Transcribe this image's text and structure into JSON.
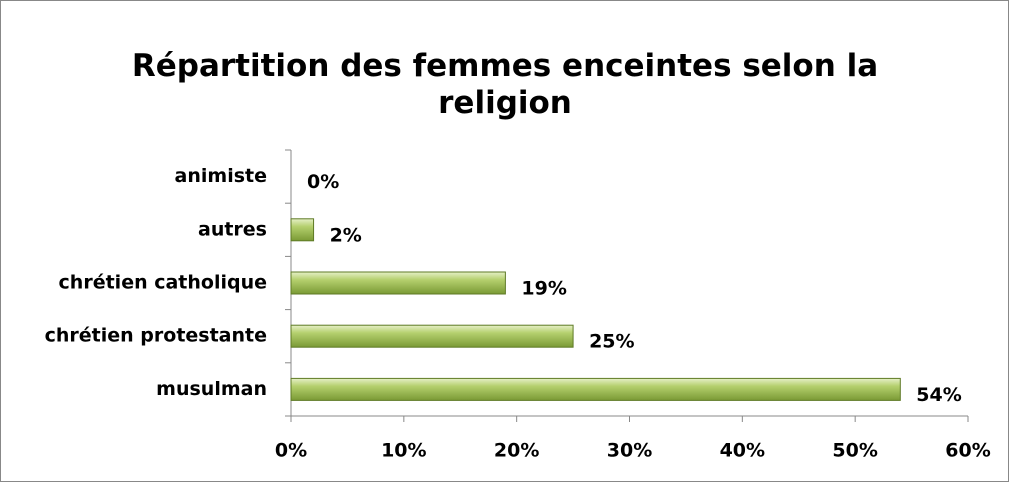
{
  "chart_data": {
    "type": "bar",
    "orientation": "horizontal",
    "title": "Répartition des femmes enceintes selon la religion",
    "categories": [
      "animiste",
      "autres",
      "chrétien catholique",
      "chrétien protestante",
      "musulman"
    ],
    "values": [
      0,
      2,
      19,
      25,
      54
    ],
    "value_labels": [
      "0%",
      "2%",
      "19%",
      "25%",
      "54%"
    ],
    "color": "#9bbb59",
    "xlim": [
      0,
      60
    ],
    "xticks": [
      {
        "value": 0,
        "label": "0%"
      },
      {
        "value": 10,
        "label": "10%"
      },
      {
        "value": 20,
        "label": "20%"
      },
      {
        "value": 30,
        "label": "30%"
      },
      {
        "value": 40,
        "label": "40%"
      },
      {
        "value": 50,
        "label": "50%"
      },
      {
        "value": 60,
        "label": "60%"
      }
    ],
    "grid": false
  }
}
